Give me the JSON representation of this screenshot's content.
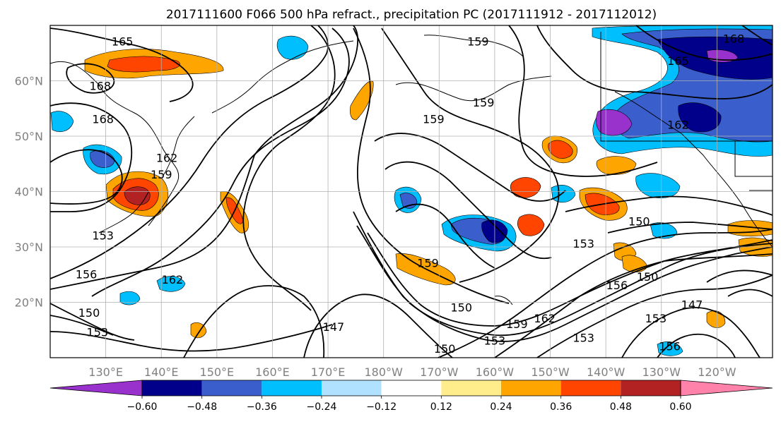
{
  "title": "2017111600 F066 500 hPa refract., precipitation PC (2017111912 - 2017112012)",
  "map": {
    "lon_range": [
      120,
      250
    ],
    "lat_range": [
      10,
      70
    ],
    "lon_ticks": [
      {
        "lon": 130,
        "label": "130°E"
      },
      {
        "lon": 140,
        "label": "140°E"
      },
      {
        "lon": 150,
        "label": "150°E"
      },
      {
        "lon": 160,
        "label": "160°E"
      },
      {
        "lon": 170,
        "label": "170°E"
      },
      {
        "lon": 180,
        "label": "180°W"
      },
      {
        "lon": 190,
        "label": "170°W"
      },
      {
        "lon": 200,
        "label": "160°W"
      },
      {
        "lon": 210,
        "label": "150°W"
      },
      {
        "lon": 220,
        "label": "140°W"
      },
      {
        "lon": 230,
        "label": "130°W"
      },
      {
        "lon": 240,
        "label": "120°W"
      }
    ],
    "lat_ticks": [
      {
        "lat": 20,
        "label": "20°N"
      },
      {
        "lat": 30,
        "label": "30°N"
      },
      {
        "lat": 40,
        "label": "40°N"
      },
      {
        "lat": 50,
        "label": "50°N"
      },
      {
        "lat": 60,
        "label": "60°N"
      }
    ],
    "grid": true
  },
  "colorbar": {
    "levels": [
      -0.6,
      -0.48,
      -0.36,
      -0.24,
      -0.12,
      0.12,
      0.24,
      0.36,
      0.48,
      0.6
    ],
    "tick_labels": [
      "−0.60",
      "−0.48",
      "−0.36",
      "−0.24",
      "−0.12",
      "0.12",
      "0.24",
      "0.36",
      "0.48",
      "0.60"
    ],
    "colors": [
      "#9932cc",
      "#00008b",
      "#3a5fcd",
      "#00bfff",
      "#b0e2ff",
      "#ffffff",
      "#ffec8b",
      "#ffa500",
      "#ff4500",
      "#b22222",
      "#ff82ab"
    ],
    "extend": "both"
  },
  "contour_labels": [
    {
      "text": "165",
      "lon": 133,
      "lat": 67
    },
    {
      "text": "168",
      "lon": 129,
      "lat": 59
    },
    {
      "text": "168",
      "lon": 129.5,
      "lat": 53
    },
    {
      "text": "162",
      "lon": 141,
      "lat": 46
    },
    {
      "text": "159",
      "lon": 140,
      "lat": 43
    },
    {
      "text": "153",
      "lon": 129.5,
      "lat": 32
    },
    {
      "text": "156",
      "lon": 126.5,
      "lat": 25
    },
    {
      "text": "150",
      "lon": 127,
      "lat": 18
    },
    {
      "text": "153",
      "lon": 128.5,
      "lat": 14.5
    },
    {
      "text": "162",
      "lon": 142,
      "lat": 24
    },
    {
      "text": "147",
      "lon": 171,
      "lat": 15.5
    },
    {
      "text": "150",
      "lon": 191,
      "lat": 11.5
    },
    {
      "text": "159",
      "lon": 189,
      "lat": 53
    },
    {
      "text": "159",
      "lon": 188,
      "lat": 27
    },
    {
      "text": "150",
      "lon": 194,
      "lat": 19
    },
    {
      "text": "159",
      "lon": 198,
      "lat": 56
    },
    {
      "text": "159",
      "lon": 197,
      "lat": 67
    },
    {
      "text": "153",
      "lon": 200,
      "lat": 13
    },
    {
      "text": "159",
      "lon": 204,
      "lat": 16
    },
    {
      "text": "162",
      "lon": 209,
      "lat": 17
    },
    {
      "text": "153",
      "lon": 216,
      "lat": 13.5
    },
    {
      "text": "153",
      "lon": 216,
      "lat": 30.5
    },
    {
      "text": "150",
      "lon": 226,
      "lat": 34.5
    },
    {
      "text": "150",
      "lon": 227.5,
      "lat": 24.5
    },
    {
      "text": "156",
      "lon": 222,
      "lat": 23
    },
    {
      "text": "147",
      "lon": 235.5,
      "lat": 19.5
    },
    {
      "text": "153",
      "lon": 229,
      "lat": 17
    },
    {
      "text": "156",
      "lon": 231.5,
      "lat": 12
    },
    {
      "text": "165",
      "lon": 233,
      "lat": 63.5
    },
    {
      "text": "168",
      "lon": 243,
      "lat": 67.5
    },
    {
      "text": "162",
      "lon": 233,
      "lat": 52
    }
  ]
}
